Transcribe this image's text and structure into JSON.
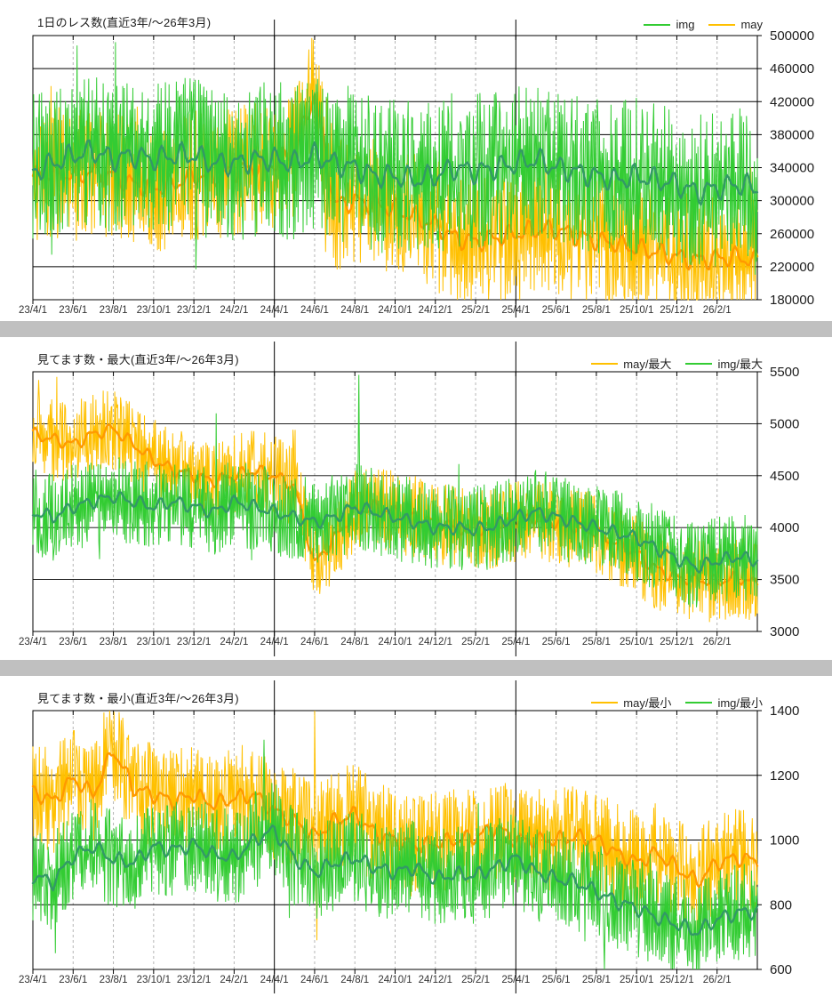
{
  "page": {
    "background": "#ffffff",
    "separator_color": "#c0c0c0",
    "axis_color": "#000000",
    "minor_grid_color": "#b5b5b5",
    "tick_label_color": "#333333"
  },
  "chart_data": [
    {
      "id": "daily-response-count",
      "type": "line",
      "title": "1日のレス数(直近3年/～26年3月)",
      "months_span": 36,
      "x_tick_labels": [
        "23/4/1",
        "23/6/1",
        "23/8/1",
        "23/10/1",
        "23/12/1",
        "24/2/1",
        "24/4/1",
        "24/6/1",
        "24/8/1",
        "24/10/1",
        "24/12/1",
        "25/2/1",
        "25/4/1",
        "25/6/1",
        "25/8/1",
        "25/10/1",
        "25/12/1",
        "26/2/1"
      ],
      "year_boundary_months": [
        12,
        24
      ],
      "year_boundary_labels": [
        "24/4/1",
        "25/4/1"
      ],
      "ylim": [
        180000,
        500000
      ],
      "y_tick_labels": [
        "500000",
        "460000",
        "420000",
        "380000",
        "340000",
        "300000",
        "260000",
        "220000",
        "180000"
      ],
      "legend": [
        {
          "label": "img",
          "color": "#33cc33"
        },
        {
          "label": "may",
          "color": "#ffc000"
        }
      ],
      "series": [
        {
          "name": "may",
          "raw_color": "#ffc000",
          "avg_color": "#ff9900",
          "noise_amplitude": 80000,
          "monthly_avg": [
            330000,
            335000,
            330000,
            335000,
            330000,
            320000,
            315000,
            320000,
            330000,
            330000,
            335000,
            340000,
            345000,
            360000,
            430000,
            295000,
            300000,
            295000,
            290000,
            280000,
            270000,
            255000,
            250000,
            255000,
            260000,
            265000,
            265000,
            258000,
            252000,
            248000,
            242000,
            238000,
            232000,
            228000,
            230000,
            232000,
            226000
          ],
          "extremes": [
            {
              "month": 13.85,
              "value": 497000
            },
            {
              "month": 14.55,
              "value": 238000
            }
          ]
        },
        {
          "name": "img",
          "raw_color": "#33cc33",
          "avg_color": "#339966",
          "noise_amplitude": 95000,
          "monthly_avg": [
            335000,
            345000,
            355000,
            360000,
            350000,
            355000,
            350000,
            355000,
            355000,
            345000,
            345000,
            350000,
            350000,
            345000,
            355000,
            345000,
            340000,
            330000,
            330000,
            325000,
            330000,
            340000,
            335000,
            340000,
            345000,
            350000,
            340000,
            335000,
            330000,
            325000,
            330000,
            325000,
            320000,
            310000,
            315000,
            320000,
            315000
          ],
          "extremes": [
            {
              "month": 4.1,
              "value": 492000
            },
            {
              "month": 2.2,
              "value": 488000
            }
          ]
        }
      ]
    },
    {
      "id": "watchers-max",
      "type": "line",
      "title": "見てます数・最大(直近3年/～26年3月)",
      "months_span": 36,
      "x_tick_labels": [
        "23/4/1",
        "23/6/1",
        "23/8/1",
        "23/10/1",
        "23/12/1",
        "24/2/1",
        "24/4/1",
        "24/6/1",
        "24/8/1",
        "24/10/1",
        "24/12/1",
        "25/2/1",
        "25/4/1",
        "25/6/1",
        "25/8/1",
        "25/10/1",
        "25/12/1",
        "26/2/1"
      ],
      "year_boundary_months": [
        12,
        24
      ],
      "year_boundary_labels": [
        "24/4/1",
        "25/4/1"
      ],
      "ylim": [
        3000,
        5500
      ],
      "y_tick_labels": [
        "5500",
        "5000",
        "4500",
        "4000",
        "3500",
        "3000"
      ],
      "legend": [
        {
          "label": "may/最大",
          "color": "#ffc000"
        },
        {
          "label": "img/最大",
          "color": "#33cc33"
        }
      ],
      "series": [
        {
          "name": "may/最大",
          "raw_color": "#ffc000",
          "avg_color": "#ff9900",
          "noise_amplitude": 400,
          "monthly_avg": [
            4900,
            4850,
            4800,
            4900,
            4950,
            4800,
            4650,
            4550,
            4500,
            4450,
            4500,
            4550,
            4500,
            4400,
            3650,
            3900,
            4150,
            4200,
            4150,
            4100,
            4050,
            4000,
            3950,
            4000,
            4050,
            4100,
            4050,
            4000,
            3950,
            3850,
            3750,
            3600,
            3520,
            3500,
            3480,
            3520,
            3460
          ],
          "extremes": [
            {
              "month": 0.3,
              "value": 5420
            },
            {
              "month": 1.2,
              "value": 5450
            },
            {
              "month": 13.95,
              "value": 3400
            }
          ]
        },
        {
          "name": "img/最大",
          "raw_color": "#33cc33",
          "avg_color": "#339966",
          "noise_amplitude": 420,
          "monthly_avg": [
            4150,
            4100,
            4200,
            4250,
            4300,
            4250,
            4200,
            4250,
            4200,
            4150,
            4250,
            4200,
            4150,
            4100,
            4050,
            4100,
            4200,
            4150,
            4100,
            4050,
            4000,
            4000,
            3980,
            4020,
            4100,
            4150,
            4100,
            4050,
            4000,
            3950,
            3900,
            3800,
            3700,
            3620,
            3680,
            3720,
            3680
          ],
          "extremes": [
            {
              "month": 16.2,
              "value": 5470
            },
            {
              "month": 9.1,
              "value": 5100
            }
          ]
        }
      ]
    },
    {
      "id": "watchers-min",
      "type": "line",
      "title": "見てます数・最小(直近3年/～26年3月)",
      "months_span": 36,
      "x_tick_labels": [
        "23/4/1",
        "23/6/1",
        "23/8/1",
        "23/10/1",
        "23/12/1",
        "24/2/1",
        "24/4/1",
        "24/6/1",
        "24/8/1",
        "24/10/1",
        "24/12/1",
        "25/2/1",
        "25/4/1",
        "25/6/1",
        "25/8/1",
        "25/10/1",
        "25/12/1",
        "26/2/1"
      ],
      "year_boundary_months": [
        12,
        24
      ],
      "year_boundary_labels": [
        "24/4/1",
        "25/4/1"
      ],
      "ylim": [
        600,
        1400
      ],
      "y_tick_labels": [
        "1400",
        "1200",
        "1000",
        "800",
        "600"
      ],
      "legend": [
        {
          "label": "may/最小",
          "color": "#ffc000"
        },
        {
          "label": "img/最小",
          "color": "#33cc33"
        }
      ],
      "series": [
        {
          "name": "may/最小",
          "raw_color": "#ffc000",
          "avg_color": "#ff9900",
          "noise_amplitude": 160,
          "monthly_avg": [
            1150,
            1120,
            1190,
            1140,
            1280,
            1160,
            1140,
            1120,
            1140,
            1110,
            1130,
            1140,
            1090,
            1060,
            1010,
            1060,
            1080,
            1020,
            1000,
            980,
            990,
            1000,
            1010,
            1040,
            1000,
            1000,
            1000,
            1010,
            1000,
            960,
            930,
            960,
            915,
            870,
            930,
            945,
            935
          ],
          "extremes": [
            {
              "month": 14.0,
              "value": 1400
            },
            {
              "month": 14.1,
              "value": 690
            },
            {
              "month": 4.3,
              "value": 1395
            }
          ]
        },
        {
          "name": "img/最小",
          "raw_color": "#33cc33",
          "avg_color": "#339966",
          "noise_amplitude": 150,
          "monthly_avg": [
            890,
            870,
            950,
            980,
            940,
            930,
            980,
            970,
            985,
            955,
            945,
            1000,
            1030,
            945,
            900,
            930,
            945,
            915,
            900,
            915,
            880,
            895,
            890,
            915,
            945,
            900,
            880,
            870,
            840,
            810,
            790,
            760,
            740,
            715,
            755,
            775,
            780
          ],
          "extremes": [
            {
              "month": 1.1,
              "value": 650
            },
            {
              "month": 11.5,
              "value": 1310
            },
            {
              "month": 28.4,
              "value": 600
            }
          ]
        }
      ]
    }
  ]
}
